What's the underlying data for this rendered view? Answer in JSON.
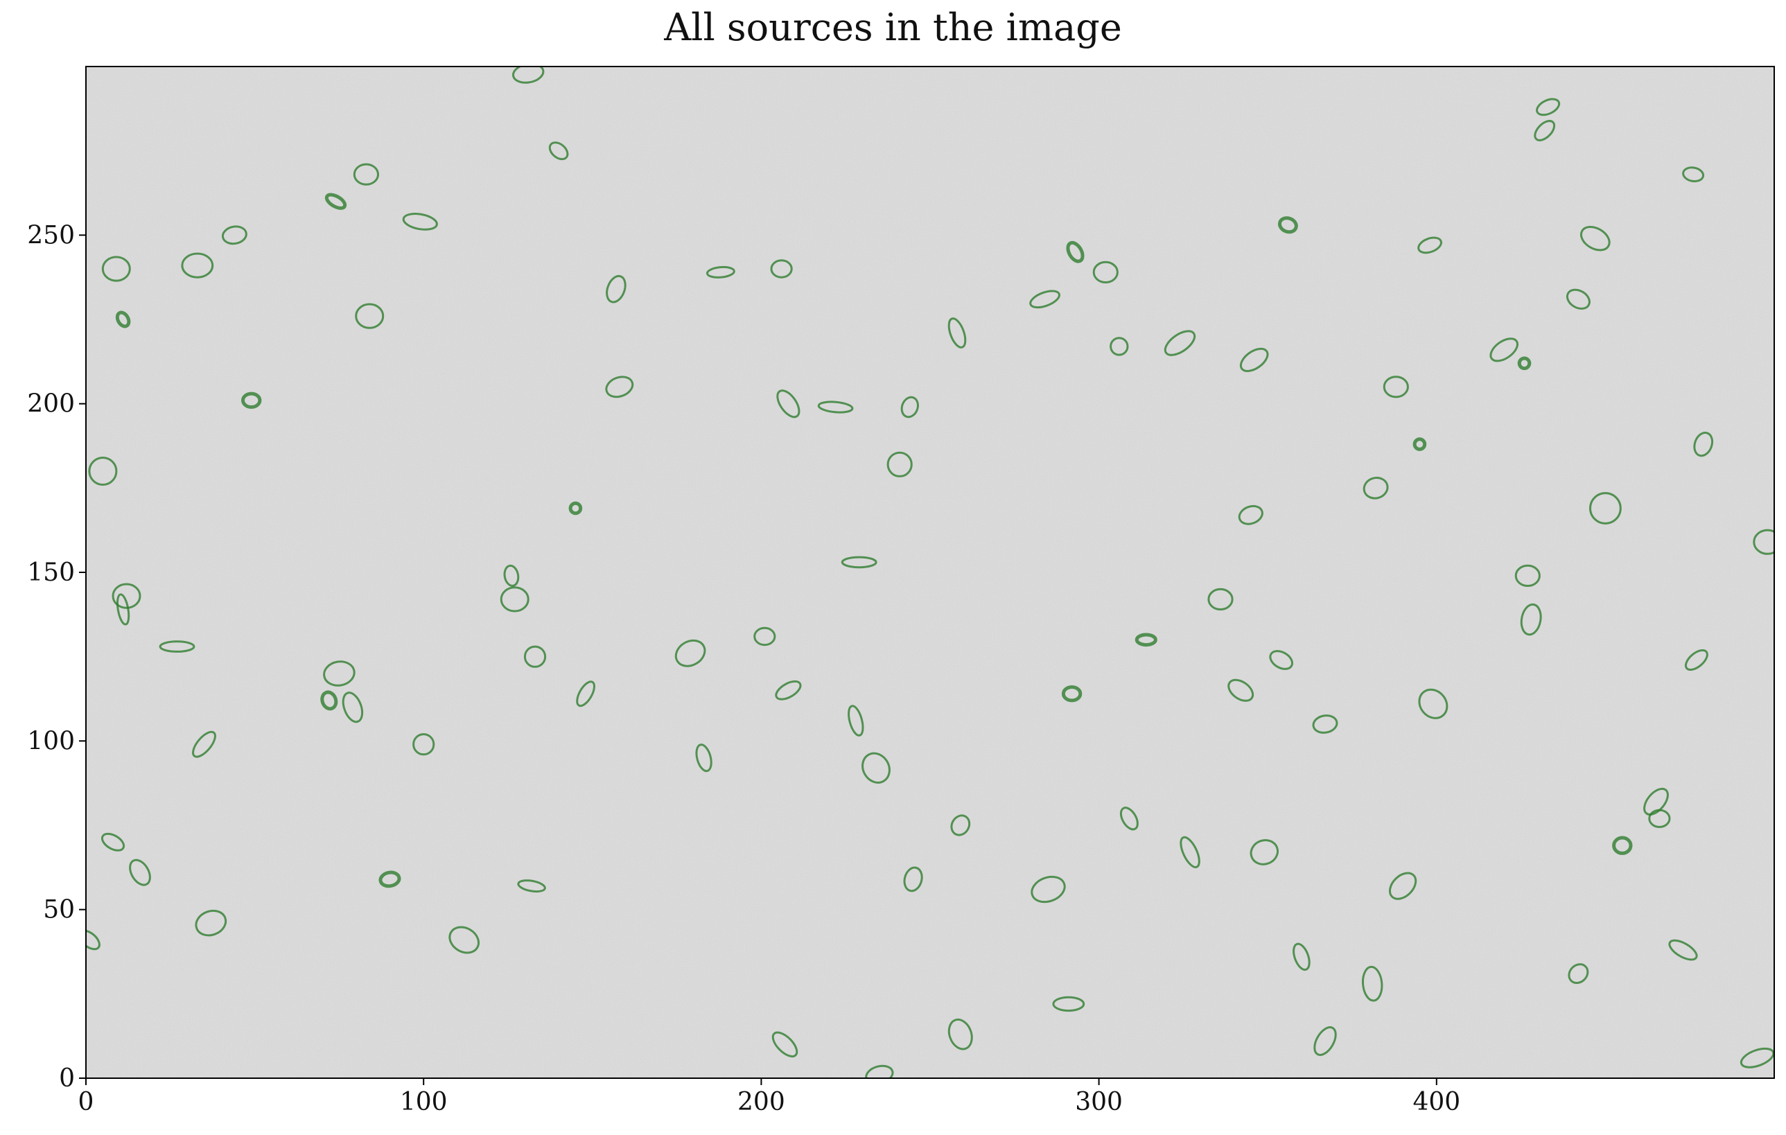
{
  "chart_data": {
    "type": "scatter",
    "title": "All sources in the image",
    "xlabel": "",
    "ylabel": "",
    "xlim": [
      0,
      500
    ],
    "ylim": [
      0,
      300
    ],
    "grid": false,
    "background": "image",
    "x_ticks": [
      0,
      100,
      200,
      300,
      400
    ],
    "y_ticks": [
      0,
      50,
      100,
      150,
      200,
      250
    ],
    "x_tick_labels": [
      "0",
      "100",
      "200",
      "300",
      "400"
    ],
    "y_tick_labels": [
      "0",
      "50",
      "100",
      "150",
      "200",
      "250"
    ],
    "colors": {
      "ellipse": "#2f7d2f",
      "background": "#d2d2d2",
      "frame": "#000000"
    },
    "sources": [
      {
        "x": 131,
        "y": 298,
        "a": 4.5,
        "b": 2.7,
        "angle": 10
      },
      {
        "x": 140,
        "y": 275,
        "a": 3.0,
        "b": 2.0,
        "angle": -40
      },
      {
        "x": 433,
        "y": 288,
        "a": 3.5,
        "b": 2.0,
        "angle": 25
      },
      {
        "x": 432,
        "y": 281,
        "a": 3.5,
        "b": 2.0,
        "angle": 45
      },
      {
        "x": 83,
        "y": 268,
        "a": 3.5,
        "b": 3.0,
        "angle": 0
      },
      {
        "x": 74,
        "y": 260,
        "a": 3.0,
        "b": 1.5,
        "angle": -30
      },
      {
        "x": 99,
        "y": 254,
        "a": 5.0,
        "b": 2.2,
        "angle": -10
      },
      {
        "x": 44,
        "y": 250,
        "a": 3.5,
        "b": 2.5,
        "angle": 10
      },
      {
        "x": 9,
        "y": 240,
        "a": 4.0,
        "b": 3.5,
        "angle": 0
      },
      {
        "x": 33,
        "y": 241,
        "a": 4.5,
        "b": 3.5,
        "angle": 0
      },
      {
        "x": 11,
        "y": 225,
        "a": 2.2,
        "b": 1.5,
        "angle": -60
      },
      {
        "x": 84,
        "y": 226,
        "a": 4.0,
        "b": 3.5,
        "angle": 0
      },
      {
        "x": 157,
        "y": 234,
        "a": 4.0,
        "b": 2.5,
        "angle": 70
      },
      {
        "x": 188,
        "y": 239,
        "a": 4.0,
        "b": 1.5,
        "angle": 5
      },
      {
        "x": 206,
        "y": 240,
        "a": 3.0,
        "b": 2.5,
        "angle": 0
      },
      {
        "x": 293,
        "y": 245,
        "a": 3.0,
        "b": 1.8,
        "angle": -60
      },
      {
        "x": 302,
        "y": 239,
        "a": 3.5,
        "b": 3.0,
        "angle": 0
      },
      {
        "x": 356,
        "y": 253,
        "a": 2.5,
        "b": 2.0,
        "angle": -20
      },
      {
        "x": 398,
        "y": 247,
        "a": 3.5,
        "b": 2.0,
        "angle": 20
      },
      {
        "x": 447,
        "y": 249,
        "a": 4.5,
        "b": 3.0,
        "angle": -30
      },
      {
        "x": 476,
        "y": 268,
        "a": 3.0,
        "b": 2.0,
        "angle": -10
      },
      {
        "x": 442,
        "y": 231,
        "a": 3.5,
        "b": 2.5,
        "angle": -30
      },
      {
        "x": 284,
        "y": 231,
        "a": 4.5,
        "b": 2.0,
        "angle": 20
      },
      {
        "x": 258,
        "y": 221,
        "a": 4.5,
        "b": 2.0,
        "angle": -70
      },
      {
        "x": 306,
        "y": 217,
        "a": 2.5,
        "b": 2.5,
        "angle": 0
      },
      {
        "x": 324,
        "y": 218,
        "a": 5.0,
        "b": 2.5,
        "angle": 35
      },
      {
        "x": 346,
        "y": 213,
        "a": 4.5,
        "b": 2.5,
        "angle": 35
      },
      {
        "x": 420,
        "y": 216,
        "a": 4.5,
        "b": 2.5,
        "angle": 35
      },
      {
        "x": 426,
        "y": 212,
        "a": 1.5,
        "b": 1.5,
        "angle": 0
      },
      {
        "x": 49,
        "y": 201,
        "a": 2.5,
        "b": 2.0,
        "angle": 0
      },
      {
        "x": 158,
        "y": 205,
        "a": 4.0,
        "b": 2.8,
        "angle": 20
      },
      {
        "x": 208,
        "y": 200,
        "a": 4.5,
        "b": 2.3,
        "angle": -55
      },
      {
        "x": 222,
        "y": 199,
        "a": 5.0,
        "b": 1.5,
        "angle": -5
      },
      {
        "x": 244,
        "y": 199,
        "a": 3.0,
        "b": 2.3,
        "angle": 70
      },
      {
        "x": 388,
        "y": 205,
        "a": 3.5,
        "b": 3.0,
        "angle": 0
      },
      {
        "x": 395,
        "y": 188,
        "a": 1.5,
        "b": 1.5,
        "angle": 0
      },
      {
        "x": 479,
        "y": 188,
        "a": 3.5,
        "b": 2.5,
        "angle": 70
      },
      {
        "x": 5,
        "y": 180,
        "a": 4.0,
        "b": 4.0,
        "angle": 0
      },
      {
        "x": 145,
        "y": 169,
        "a": 1.5,
        "b": 1.5,
        "angle": 0
      },
      {
        "x": 241,
        "y": 182,
        "a": 3.5,
        "b": 3.5,
        "angle": 0
      },
      {
        "x": 382,
        "y": 175,
        "a": 3.5,
        "b": 3.0,
        "angle": 15
      },
      {
        "x": 345,
        "y": 167,
        "a": 3.5,
        "b": 2.5,
        "angle": 20
      },
      {
        "x": 450,
        "y": 169,
        "a": 4.5,
        "b": 4.5,
        "angle": 0
      },
      {
        "x": 498,
        "y": 159,
        "a": 4.0,
        "b": 3.5,
        "angle": 0
      },
      {
        "x": 229,
        "y": 153,
        "a": 5.0,
        "b": 1.5,
        "angle": 0
      },
      {
        "x": 126,
        "y": 149,
        "a": 3.0,
        "b": 2.0,
        "angle": -80
      },
      {
        "x": 127,
        "y": 142,
        "a": 4.0,
        "b": 3.5,
        "angle": 0
      },
      {
        "x": 12,
        "y": 143,
        "a": 4.0,
        "b": 3.5,
        "angle": 0
      },
      {
        "x": 11,
        "y": 139,
        "a": 4.5,
        "b": 1.5,
        "angle": -80
      },
      {
        "x": 336,
        "y": 142,
        "a": 3.5,
        "b": 3.0,
        "angle": 0
      },
      {
        "x": 427,
        "y": 149,
        "a": 3.5,
        "b": 3.0,
        "angle": 0
      },
      {
        "x": 428,
        "y": 136,
        "a": 4.5,
        "b": 2.8,
        "angle": 80
      },
      {
        "x": 27,
        "y": 128,
        "a": 5.0,
        "b": 1.5,
        "angle": 0
      },
      {
        "x": 133,
        "y": 125,
        "a": 3.0,
        "b": 3.0,
        "angle": 0
      },
      {
        "x": 179,
        "y": 126,
        "a": 4.5,
        "b": 3.5,
        "angle": 30
      },
      {
        "x": 201,
        "y": 131,
        "a": 3.0,
        "b": 2.5,
        "angle": 0
      },
      {
        "x": 314,
        "y": 130,
        "a": 2.8,
        "b": 1.5,
        "angle": 0
      },
      {
        "x": 354,
        "y": 124,
        "a": 3.5,
        "b": 2.3,
        "angle": -30
      },
      {
        "x": 477,
        "y": 124,
        "a": 3.8,
        "b": 2.0,
        "angle": 40
      },
      {
        "x": 75,
        "y": 120,
        "a": 4.5,
        "b": 3.5,
        "angle": 10
      },
      {
        "x": 72,
        "y": 112,
        "a": 2.5,
        "b": 2.0,
        "angle": -70
      },
      {
        "x": 79,
        "y": 110,
        "a": 4.5,
        "b": 2.5,
        "angle": -70
      },
      {
        "x": 148,
        "y": 114,
        "a": 4.0,
        "b": 1.8,
        "angle": 60
      },
      {
        "x": 208,
        "y": 115,
        "a": 4.0,
        "b": 2.0,
        "angle": 30
      },
      {
        "x": 292,
        "y": 114,
        "a": 2.5,
        "b": 2.0,
        "angle": 0
      },
      {
        "x": 342,
        "y": 115,
        "a": 4.0,
        "b": 2.5,
        "angle": -35
      },
      {
        "x": 399,
        "y": 111,
        "a": 4.5,
        "b": 3.8,
        "angle": -50
      },
      {
        "x": 228,
        "y": 106,
        "a": 4.5,
        "b": 1.8,
        "angle": -75
      },
      {
        "x": 367,
        "y": 105,
        "a": 3.5,
        "b": 2.5,
        "angle": 10
      },
      {
        "x": 35,
        "y": 99,
        "a": 4.5,
        "b": 2.0,
        "angle": 50
      },
      {
        "x": 100,
        "y": 99,
        "a": 3.0,
        "b": 3.0,
        "angle": 0
      },
      {
        "x": 183,
        "y": 95,
        "a": 4.0,
        "b": 2.0,
        "angle": -75
      },
      {
        "x": 234,
        "y": 92,
        "a": 4.5,
        "b": 3.8,
        "angle": -60
      },
      {
        "x": 465,
        "y": 82,
        "a": 4.5,
        "b": 2.5,
        "angle": 50
      },
      {
        "x": 466,
        "y": 77,
        "a": 3.0,
        "b": 2.5,
        "angle": 0
      },
      {
        "x": 259,
        "y": 75,
        "a": 3.0,
        "b": 2.5,
        "angle": 60
      },
      {
        "x": 309,
        "y": 77,
        "a": 3.5,
        "b": 2.0,
        "angle": -60
      },
      {
        "x": 8,
        "y": 70,
        "a": 3.5,
        "b": 2.0,
        "angle": -30
      },
      {
        "x": 327,
        "y": 67,
        "a": 4.8,
        "b": 2.0,
        "angle": -65
      },
      {
        "x": 349,
        "y": 67,
        "a": 4.0,
        "b": 3.5,
        "angle": 20
      },
      {
        "x": 455,
        "y": 69,
        "a": 2.5,
        "b": 2.3,
        "angle": 0
      },
      {
        "x": 16,
        "y": 61,
        "a": 4.0,
        "b": 2.5,
        "angle": -60
      },
      {
        "x": 90,
        "y": 59,
        "a": 2.8,
        "b": 2.0,
        "angle": 10
      },
      {
        "x": 132,
        "y": 57,
        "a": 4.0,
        "b": 1.5,
        "angle": -10
      },
      {
        "x": 245,
        "y": 59,
        "a": 3.5,
        "b": 2.5,
        "angle": 75
      },
      {
        "x": 285,
        "y": 56,
        "a": 5.0,
        "b": 3.5,
        "angle": 20
      },
      {
        "x": 390,
        "y": 57,
        "a": 4.5,
        "b": 3.0,
        "angle": 45
      },
      {
        "x": 37,
        "y": 46,
        "a": 4.5,
        "b": 3.5,
        "angle": 20
      },
      {
        "x": 112,
        "y": 41,
        "a": 4.5,
        "b": 3.5,
        "angle": -30
      },
      {
        "x": 1,
        "y": 41,
        "a": 3.5,
        "b": 2.0,
        "angle": -40
      },
      {
        "x": 360,
        "y": 36,
        "a": 4.0,
        "b": 2.0,
        "angle": -70
      },
      {
        "x": 473,
        "y": 38,
        "a": 4.5,
        "b": 2.0,
        "angle": -30
      },
      {
        "x": 442,
        "y": 31,
        "a": 3.0,
        "b": 2.5,
        "angle": 45
      },
      {
        "x": 381,
        "y": 28,
        "a": 5.0,
        "b": 2.8,
        "angle": -85
      },
      {
        "x": 291,
        "y": 22,
        "a": 4.5,
        "b": 2.0,
        "angle": 0
      },
      {
        "x": 259,
        "y": 13,
        "a": 4.5,
        "b": 3.2,
        "angle": -70
      },
      {
        "x": 207,
        "y": 10,
        "a": 4.5,
        "b": 2.2,
        "angle": -45
      },
      {
        "x": 367,
        "y": 11,
        "a": 4.5,
        "b": 2.5,
        "angle": 60
      },
      {
        "x": 235,
        "y": 1,
        "a": 4.0,
        "b": 2.5,
        "angle": 15
      },
      {
        "x": 495,
        "y": 6,
        "a": 5.0,
        "b": 2.3,
        "angle": 20
      }
    ]
  }
}
